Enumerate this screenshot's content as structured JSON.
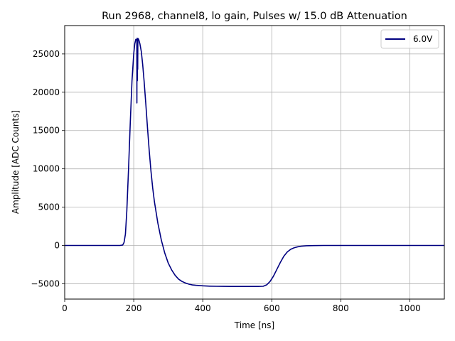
{
  "chart_data": {
    "type": "line",
    "title": "Run 2968, channel8, lo gain, Pulses w/ 15.0 dB Attenuation",
    "xlabel": "Time [ns]",
    "ylabel": "Amplitude [ADC Counts]",
    "xlim": [
      0,
      1100
    ],
    "ylim": [
      -7000,
      28700
    ],
    "xticks": [
      0,
      200,
      400,
      600,
      800,
      1000
    ],
    "yticks": [
      -5000,
      0,
      5000,
      10000,
      15000,
      20000,
      25000
    ],
    "grid": true,
    "legend_position": "top-right",
    "series": [
      {
        "name": "6.0V",
        "color": "#000080",
        "x": [
          0,
          100,
          160,
          168,
          172,
          176,
          180,
          185,
          190,
          195,
          200,
          203,
          206,
          209,
          209.2,
          209.4,
          209.6,
          210,
          210.5,
          211,
          211.5,
          212,
          213,
          215,
          218,
          222,
          226,
          230,
          235,
          240,
          245,
          250,
          255,
          260,
          270,
          280,
          290,
          300,
          310,
          320,
          330,
          340,
          350,
          360,
          370,
          380,
          400,
          420,
          440,
          460,
          480,
          500,
          520,
          540,
          560,
          575,
          585,
          595,
          605,
          615,
          625,
          635,
          645,
          655,
          665,
          675,
          685,
          700,
          720,
          750,
          800,
          850,
          900,
          950,
          1000,
          1050,
          1100
        ],
        "y": [
          0,
          0,
          0,
          50,
          400,
          1500,
          4500,
          10000,
          16000,
          21500,
          25000,
          26300,
          26900,
          26800,
          18600,
          26500,
          26900,
          27050,
          21500,
          26800,
          23000,
          26900,
          27000,
          26800,
          26300,
          25300,
          23600,
          21500,
          18500,
          15300,
          12300,
          9700,
          7500,
          5700,
          2900,
          700,
          -1000,
          -2300,
          -3200,
          -3900,
          -4400,
          -4700,
          -4900,
          -5050,
          -5150,
          -5200,
          -5270,
          -5310,
          -5330,
          -5340,
          -5345,
          -5350,
          -5350,
          -5350,
          -5350,
          -5330,
          -5150,
          -4700,
          -4000,
          -3100,
          -2200,
          -1400,
          -850,
          -500,
          -300,
          -180,
          -100,
          -40,
          -20,
          0,
          0,
          0,
          0,
          0,
          0,
          0,
          0
        ]
      }
    ]
  }
}
